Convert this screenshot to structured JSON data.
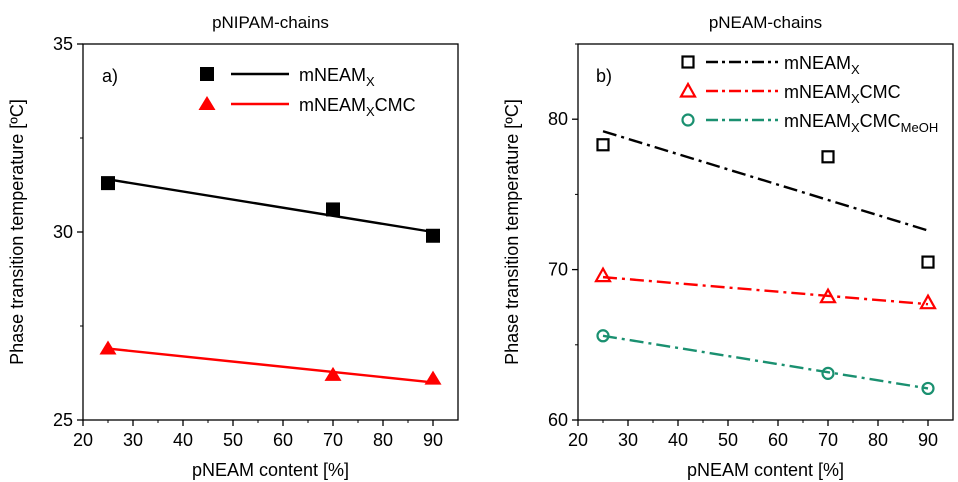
{
  "chart_data": [
    {
      "type": "scatter",
      "title": "pNIPAM-chains",
      "panel_label": "a)",
      "xlabel": "pNEAM content [%]",
      "ylabel": "Phase transition temperature [ºC]",
      "xlim": [
        20,
        95
      ],
      "ylim": [
        25,
        35
      ],
      "xticks": [
        20,
        30,
        40,
        50,
        60,
        70,
        80,
        90
      ],
      "yticks": [
        25,
        30,
        35
      ],
      "legend_position": "top-right",
      "series": [
        {
          "name": "mNEAM",
          "name_sub": "X",
          "name_tail": "",
          "name_tail_sub": "",
          "color": "#000000",
          "marker": "filled-square",
          "line": "solid",
          "points": [
            [
              25,
              31.3
            ],
            [
              70,
              30.6
            ],
            [
              90,
              29.9
            ]
          ],
          "fit": [
            [
              25,
              31.4
            ],
            [
              90,
              30.0
            ]
          ]
        },
        {
          "name": "mNEAM",
          "name_sub": "X",
          "name_tail": "CMC",
          "name_tail_sub": "",
          "color": "#ff0000",
          "marker": "filled-triangle",
          "line": "solid",
          "points": [
            [
              25,
              26.9
            ],
            [
              70,
              26.2
            ],
            [
              90,
              26.1
            ]
          ],
          "fit": [
            [
              25,
              26.9
            ],
            [
              90,
              26.0
            ]
          ]
        }
      ]
    },
    {
      "type": "scatter",
      "title": "pNEAM-chains",
      "panel_label": "b)",
      "xlabel": "pNEAM content [%]",
      "ylabel": "Phase transition temperature [ºC]",
      "xlim": [
        20,
        95
      ],
      "ylim": [
        60,
        85
      ],
      "xticks": [
        20,
        30,
        40,
        50,
        60,
        70,
        80,
        90
      ],
      "yticks": [
        60,
        70,
        80
      ],
      "legend_position": "top-right",
      "series": [
        {
          "name": "mNEAM",
          "name_sub": "X",
          "name_tail": "",
          "name_tail_sub": "",
          "color": "#000000",
          "marker": "open-square",
          "line": "dash-dot",
          "points": [
            [
              25,
              78.3
            ],
            [
              70,
              77.5
            ],
            [
              90,
              70.5
            ]
          ],
          "fit": [
            [
              25,
              79.2
            ],
            [
              90,
              72.6
            ]
          ]
        },
        {
          "name": "mNEAM",
          "name_sub": "X",
          "name_tail": "CMC",
          "name_tail_sub": "",
          "color": "#ff0000",
          "marker": "open-triangle",
          "line": "dash-dot",
          "points": [
            [
              25,
              69.6
            ],
            [
              70,
              68.2
            ],
            [
              90,
              67.8
            ]
          ],
          "fit": [
            [
              25,
              69.5
            ],
            [
              90,
              67.7
            ]
          ]
        },
        {
          "name": "mNEAM",
          "name_sub": "X",
          "name_tail": "CMC",
          "name_tail_sub": "MeOH",
          "color": "#1a9070",
          "marker": "open-circle",
          "line": "dash-dot",
          "points": [
            [
              25,
              65.6
            ],
            [
              70,
              63.1
            ],
            [
              90,
              62.1
            ]
          ],
          "fit": [
            [
              25,
              65.6
            ],
            [
              90,
              62.1
            ]
          ]
        }
      ]
    }
  ]
}
